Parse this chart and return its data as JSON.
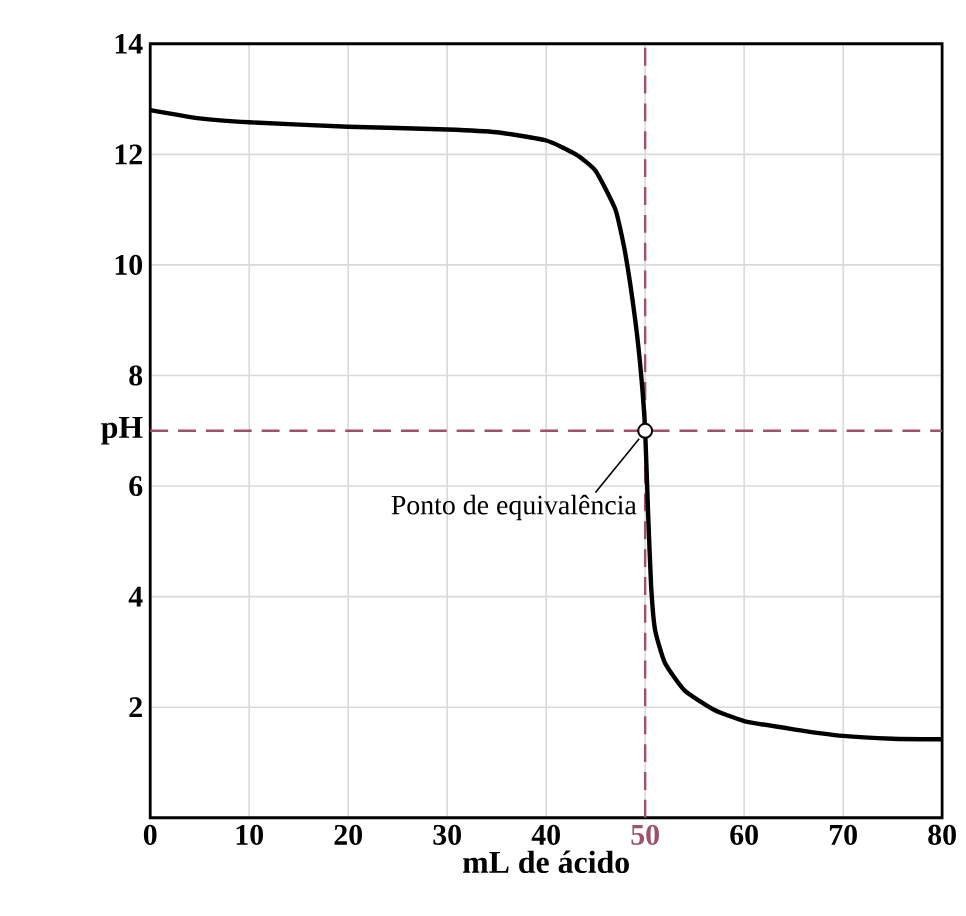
{
  "chart_data": {
    "type": "line",
    "xlabel": "mL de ácido",
    "ylabel": "pH",
    "x": [
      0,
      5,
      10,
      20,
      30,
      35,
      40,
      43,
      45,
      47,
      48,
      49,
      49.6,
      50,
      50.3,
      50.6,
      51,
      52,
      54,
      57,
      60,
      65,
      70,
      75,
      80
    ],
    "series": [
      {
        "color": "#000000",
        "values": [
          12.8,
          12.65,
          12.58,
          12.5,
          12.45,
          12.4,
          12.25,
          12.0,
          11.7,
          11.0,
          10.2,
          9.0,
          8.0,
          7,
          5.5,
          4.2,
          3.4,
          2.8,
          2.3,
          1.95,
          1.75,
          1.6,
          1.48,
          1.43,
          1.42
        ]
      }
    ],
    "xlim": [
      0,
      80
    ],
    "xticks": [
      0,
      10,
      20,
      30,
      40,
      50,
      60,
      70,
      80
    ],
    "ylim": [
      0,
      14
    ],
    "yticks": [
      {
        "value": 0,
        "label": null
      },
      2,
      4,
      6,
      8,
      10,
      12,
      14
    ],
    "grid": true,
    "marker": "none",
    "line_style": "solid",
    "ref_lines": [
      {
        "axis": "x",
        "value": 50,
        "color": "#a0506a",
        "line_style": "dashed"
      },
      {
        "axis": "y",
        "value": 7,
        "color": "#a0506a",
        "line_style": "dashed"
      }
    ],
    "annotations": [
      {
        "text": "Ponto de equivalência",
        "x": 50,
        "y": 7
      }
    ]
  }
}
